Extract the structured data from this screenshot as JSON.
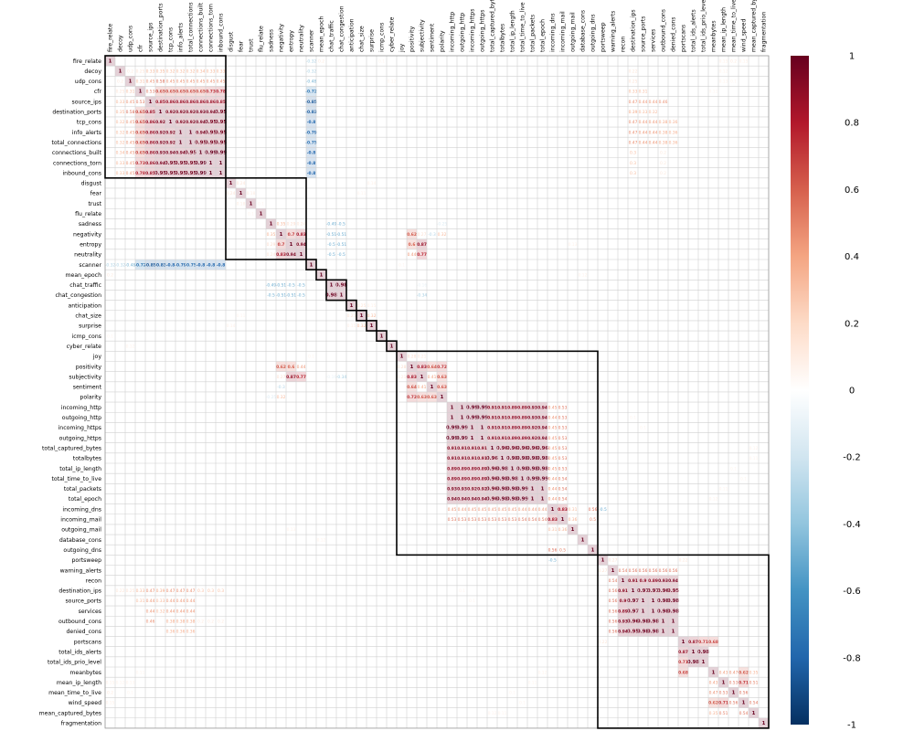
{
  "chart_data": {
    "type": "heatmap",
    "variables": [
      "fire_relate",
      "decoy",
      "udp_cons",
      "cfr",
      "source_ips",
      "destination_ports",
      "tcp_cons",
      "info_alerts",
      "total_connections",
      "connections_built",
      "connections_torn",
      "inbound_cons",
      "disgust",
      "fear",
      "trust",
      "flu_relate",
      "sadness",
      "negativity",
      "entropy",
      "neutrality",
      "scanner",
      "mean_epoch",
      "chat_traffic",
      "chat_congestion",
      "anticipation",
      "chat_size",
      "surprise",
      "icmp_cons",
      "cyber_relate",
      "joy",
      "positivity",
      "subjectivity",
      "sentiment",
      "polarity",
      "incoming_http",
      "outgoing_http",
      "incoming_https",
      "outgoing_https",
      "total_captured_bytes",
      "totalbytes",
      "total_ip_length",
      "total_time_to_live",
      "total_packets",
      "total_epoch",
      "incoming_dns",
      "incoming_mail",
      "outgoing_mail",
      "database_cons",
      "outgoing_dns",
      "portsweep",
      "warning_alerts",
      "recon",
      "destination_ips",
      "source_ports",
      "services",
      "outbound_cons",
      "denied_cons",
      "portscans",
      "total_ids_alerts",
      "total_ids_prio_level",
      "meanbytes",
      "mean_ip_length",
      "mean_time_to_live",
      "wind_speed",
      "mean_captured_bytes",
      "fragmentation"
    ],
    "clusters": [
      [
        0,
        11
      ],
      [
        12,
        19
      ],
      [
        20,
        20
      ],
      [
        21,
        21
      ],
      [
        22,
        23
      ],
      [
        24,
        24
      ],
      [
        25,
        25
      ],
      [
        26,
        26
      ],
      [
        27,
        27
      ],
      [
        28,
        28
      ],
      [
        29,
        48
      ],
      [
        49,
        65
      ]
    ],
    "colorbar": {
      "ticks": [
        "1",
        "0.8",
        "0.6",
        "0.4",
        "0.2",
        "0",
        "-0.2",
        "-0.4",
        "-0.6",
        "-0.8",
        "-1"
      ],
      "colors": [
        "#67001f",
        "#b2182b",
        "#d6604d",
        "#f4a582",
        "#fddbc7",
        "#ffffff",
        "#d1e5f0",
        "#92c5de",
        "#4393c3",
        "#2166ac",
        "#053061"
      ]
    },
    "groups": [
      {
        "members": [
          1,
          2,
          3,
          4,
          5,
          6,
          7,
          8,
          9,
          10,
          11
        ],
        "matrix": [
          [
            1,
            0.2,
            0.25,
            0.33,
            0.35,
            0.32,
            0.32,
            0.32,
            0.34,
            0.33,
            0.33
          ],
          [
            0.2,
            1,
            0.31,
            0.45,
            0.58,
            0.45,
            0.45,
            0.45,
            0.45,
            0.45,
            0.45
          ],
          [
            0.25,
            0.31,
            1,
            0.53,
            0.65,
            0.65,
            0.65,
            0.65,
            0.65,
            0.73,
            0.78
          ],
          [
            0.33,
            0.45,
            0.53,
            1,
            0.85,
            0.86,
            0.86,
            0.86,
            0.86,
            0.86,
            0.85
          ],
          [
            0.35,
            0.58,
            0.65,
            0.85,
            1,
            0.92,
            0.92,
            0.92,
            0.93,
            0.94,
            0.95
          ],
          [
            0.32,
            0.45,
            0.65,
            0.86,
            0.92,
            1,
            0.92,
            0.92,
            0.94,
            0.95,
            0.95
          ],
          [
            0.32,
            0.45,
            0.65,
            0.86,
            0.92,
            0.92,
            1,
            1,
            0.94,
            0.95,
            0.95
          ],
          [
            0.32,
            0.45,
            0.65,
            0.86,
            0.92,
            0.92,
            1,
            1,
            0.95,
            0.95,
            0.95
          ],
          [
            0.34,
            0.45,
            0.65,
            0.86,
            0.93,
            0.94,
            0.94,
            0.95,
            1,
            0.99,
            0.99
          ],
          [
            0.33,
            0.45,
            0.73,
            0.86,
            0.94,
            0.95,
            0.95,
            0.95,
            0.99,
            1,
            1
          ],
          [
            0.33,
            0.45,
            0.78,
            0.85,
            0.95,
            0.95,
            0.95,
            0.95,
            0.99,
            1,
            1
          ]
        ]
      },
      {
        "members": [
          34,
          35,
          36,
          37,
          38,
          39,
          40,
          41,
          42,
          43
        ],
        "matrix": [
          [
            1,
            1,
            0.99,
            0.99,
            0.91,
            0.91,
            0.89,
            0.89,
            0.93,
            0.94
          ],
          [
            1,
            1,
            0.99,
            0.99,
            0.91,
            0.91,
            0.89,
            0.89,
            0.93,
            0.94
          ],
          [
            0.99,
            0.99,
            1,
            1,
            0.91,
            0.91,
            0.89,
            0.89,
            0.92,
            0.94
          ],
          [
            0.99,
            0.99,
            1,
            1,
            0.91,
            0.91,
            0.89,
            0.89,
            0.92,
            0.94
          ],
          [
            0.91,
            0.91,
            0.91,
            0.91,
            1,
            0.96,
            0.96,
            0.96,
            0.96,
            0.96
          ],
          [
            0.91,
            0.91,
            0.91,
            0.91,
            0.96,
            1,
            0.98,
            0.98,
            0.98,
            0.98
          ],
          [
            0.89,
            0.89,
            0.89,
            0.89,
            0.96,
            0.98,
            1,
            0.98,
            0.98,
            0.98
          ],
          [
            0.89,
            0.89,
            0.89,
            0.89,
            0.96,
            0.98,
            0.98,
            1,
            0.99,
            0.99
          ],
          [
            0.93,
            0.93,
            0.92,
            0.92,
            0.96,
            0.98,
            0.98,
            0.99,
            1,
            1
          ],
          [
            0.94,
            0.94,
            0.94,
            0.94,
            0.96,
            0.98,
            0.98,
            0.99,
            1,
            1
          ]
        ]
      },
      {
        "members": [
          51,
          52,
          53,
          54,
          55,
          56
        ],
        "matrix": [
          [
            1,
            0.91,
            0.9,
            0.89,
            0.93,
            0.94
          ],
          [
            0.91,
            1,
            0.97,
            0.97,
            0.96,
            0.95
          ],
          [
            0.9,
            0.97,
            1,
            1,
            0.98,
            0.98
          ],
          [
            0.89,
            0.97,
            1,
            1,
            0.98,
            0.98
          ],
          [
            0.93,
            0.96,
            0.98,
            0.98,
            1,
            1
          ],
          [
            0.94,
            0.95,
            0.98,
            0.98,
            1,
            1
          ]
        ]
      }
    ],
    "pairs": [
      {
        "i": 20,
        "j": 0,
        "v": -0.32
      },
      {
        "i": 20,
        "j": 1,
        "v": -0.32
      },
      {
        "i": 20,
        "j": 2,
        "v": -0.48
      },
      {
        "i": 20,
        "j": 3,
        "v": -0.72
      },
      {
        "i": 20,
        "j": 4,
        "v": -0.85
      },
      {
        "i": 20,
        "j": 5,
        "v": -0.83
      },
      {
        "i": 20,
        "j": 6,
        "v": -0.8
      },
      {
        "i": 20,
        "j": 7,
        "v": -0.79
      },
      {
        "i": 20,
        "j": 8,
        "v": -0.75
      },
      {
        "i": 20,
        "j": 9,
        "v": -0.8
      },
      {
        "i": 20,
        "j": 10,
        "v": -0.8
      },
      {
        "i": 20,
        "j": 11,
        "v": -0.8
      },
      {
        "i": 21,
        "j": 0,
        "v": 0.2
      },
      {
        "i": 22,
        "j": 23,
        "v": 0.98
      },
      {
        "i": 22,
        "j": 16,
        "v": -0.49
      },
      {
        "i": 22,
        "j": 17,
        "v": -0.51
      },
      {
        "i": 22,
        "j": 18,
        "v": -0.5
      },
      {
        "i": 22,
        "j": 19,
        "v": -0.5
      },
      {
        "i": 23,
        "j": 16,
        "v": -0.5
      },
      {
        "i": 23,
        "j": 17,
        "v": -0.51
      },
      {
        "i": 23,
        "j": 18,
        "v": -0.51
      },
      {
        "i": 23,
        "j": 19,
        "v": -0.5
      },
      {
        "i": 16,
        "j": 17,
        "v": 0.35
      },
      {
        "i": 16,
        "j": 18,
        "v": 0.29
      },
      {
        "i": 16,
        "j": 19,
        "v": 0.24
      },
      {
        "i": 17,
        "j": 18,
        "v": 0.7
      },
      {
        "i": 17,
        "j": 19,
        "v": 0.83
      },
      {
        "i": 18,
        "j": 19,
        "v": 0.94
      },
      {
        "i": 12,
        "j": 13,
        "v": 0.24
      },
      {
        "i": 14,
        "j": 13,
        "v": 0.18
      },
      {
        "i": 15,
        "j": 14,
        "v": 0.1
      },
      {
        "i": 24,
        "j": 25,
        "v": 0.25
      },
      {
        "i": 25,
        "j": 26,
        "v": 0.32
      },
      {
        "i": 24,
        "j": 26,
        "v": 0.15
      },
      {
        "i": 29,
        "j": 30,
        "v": 0.28
      },
      {
        "i": 29,
        "j": 31,
        "v": 0.21
      },
      {
        "i": 30,
        "j": 31,
        "v": 0.83
      },
      {
        "i": 30,
        "j": 32,
        "v": 0.64
      },
      {
        "i": 30,
        "j": 33,
        "v": 0.72
      },
      {
        "i": 31,
        "j": 32,
        "v": 0.41
      },
      {
        "i": 31,
        "j": 33,
        "v": 0.63
      },
      {
        "i": 32,
        "j": 33,
        "v": 0.63
      },
      {
        "i": 17,
        "j": 30,
        "v": 0.62
      },
      {
        "i": 17,
        "j": 31,
        "v": 0.27
      },
      {
        "i": 17,
        "j": 32,
        "v": -0.3
      },
      {
        "i": 18,
        "j": 30,
        "v": 0.6
      },
      {
        "i": 18,
        "j": 31,
        "v": 0.87
      },
      {
        "i": 19,
        "j": 30,
        "v": 0.44
      },
      {
        "i": 19,
        "j": 31,
        "v": 0.77
      },
      {
        "i": 33,
        "j": 16,
        "v": -0.25
      },
      {
        "i": 33,
        "j": 17,
        "v": 0.32
      },
      {
        "i": 31,
        "j": 23,
        "v": -0.34
      },
      {
        "i": 31,
        "j": 22,
        "v": -0.16
      },
      {
        "i": 44,
        "j": 34,
        "v": 0.45
      },
      {
        "i": 44,
        "j": 35,
        "v": 0.44
      },
      {
        "i": 44,
        "j": 36,
        "v": 0.45
      },
      {
        "i": 44,
        "j": 37,
        "v": 0.45
      },
      {
        "i": 44,
        "j": 38,
        "v": 0.45
      },
      {
        "i": 44,
        "j": 39,
        "v": 0.45
      },
      {
        "i": 44,
        "j": 40,
        "v": 0.45
      },
      {
        "i": 44,
        "j": 41,
        "v": 0.44
      },
      {
        "i": 44,
        "j": 42,
        "v": 0.44
      },
      {
        "i": 44,
        "j": 43,
        "v": 0.44
      },
      {
        "i": 44,
        "j": 45,
        "v": 0.83
      },
      {
        "i": 45,
        "j": 34,
        "v": 0.53
      },
      {
        "i": 45,
        "j": 35,
        "v": 0.53
      },
      {
        "i": 45,
        "j": 36,
        "v": 0.53
      },
      {
        "i": 45,
        "j": 37,
        "v": 0.53
      },
      {
        "i": 45,
        "j": 38,
        "v": 0.53
      },
      {
        "i": 45,
        "j": 39,
        "v": 0.53
      },
      {
        "i": 45,
        "j": 40,
        "v": 0.53
      },
      {
        "i": 45,
        "j": 41,
        "v": 0.54
      },
      {
        "i": 45,
        "j": 42,
        "v": 0.54
      },
      {
        "i": 45,
        "j": 43,
        "v": 0.54
      },
      {
        "i": 46,
        "j": 44,
        "v": 0.31
      },
      {
        "i": 46,
        "j": 45,
        "v": 0.36
      },
      {
        "i": 48,
        "j": 44,
        "v": 0.56
      },
      {
        "i": 48,
        "j": 45,
        "v": 0.5
      },
      {
        "i": 44,
        "j": 49,
        "v": -0.5
      },
      {
        "i": 50,
        "j": 51,
        "v": 0.54
      },
      {
        "i": 50,
        "j": 52,
        "v": 0.56
      },
      {
        "i": 50,
        "j": 53,
        "v": 0.56
      },
      {
        "i": 50,
        "j": 54,
        "v": 0.56
      },
      {
        "i": 50,
        "j": 55,
        "v": 0.56
      },
      {
        "i": 50,
        "j": 56,
        "v": 0.56
      },
      {
        "i": 49,
        "j": 57,
        "v": 0.22
      },
      {
        "i": 49,
        "j": 50,
        "v": 0.27
      },
      {
        "i": 57,
        "j": 58,
        "v": 0.87
      },
      {
        "i": 57,
        "j": 59,
        "v": 0.71
      },
      {
        "i": 57,
        "j": 60,
        "v": 0.68
      },
      {
        "i": 58,
        "j": 59,
        "v": 0.98
      },
      {
        "i": 60,
        "j": 61,
        "v": 0.43
      },
      {
        "i": 60,
        "j": 62,
        "v": 0.47
      },
      {
        "i": 60,
        "j": 63,
        "v": 0.62
      },
      {
        "i": 61,
        "j": 62,
        "v": 0.53
      },
      {
        "i": 61,
        "j": 63,
        "v": 0.71
      },
      {
        "i": 62,
        "j": 63,
        "v": 0.56
      },
      {
        "i": 63,
        "j": 64,
        "v": 0.54
      },
      {
        "i": 61,
        "j": 64,
        "v": 0.51
      },
      {
        "i": 60,
        "j": 64,
        "v": 0.35
      },
      {
        "i": 4,
        "j": 52,
        "v": 0.47
      },
      {
        "i": 4,
        "j": 53,
        "v": 0.44
      },
      {
        "i": 4,
        "j": 54,
        "v": 0.44
      },
      {
        "i": 4,
        "j": 55,
        "v": 0.46
      },
      {
        "i": 5,
        "j": 52,
        "v": 0.39
      },
      {
        "i": 5,
        "j": 53,
        "v": 0.33
      },
      {
        "i": 5,
        "j": 54,
        "v": 0.32
      },
      {
        "i": 6,
        "j": 52,
        "v": 0.47
      },
      {
        "i": 6,
        "j": 53,
        "v": 0.44
      },
      {
        "i": 6,
        "j": 54,
        "v": 0.44
      },
      {
        "i": 6,
        "j": 55,
        "v": 0.38
      },
      {
        "i": 6,
        "j": 56,
        "v": 0.36
      },
      {
        "i": 7,
        "j": 52,
        "v": 0.47
      },
      {
        "i": 7,
        "j": 53,
        "v": 0.44
      },
      {
        "i": 7,
        "j": 54,
        "v": 0.44
      },
      {
        "i": 7,
        "j": 55,
        "v": 0.38
      },
      {
        "i": 7,
        "j": 56,
        "v": 0.36
      },
      {
        "i": 8,
        "j": 52,
        "v": 0.47
      },
      {
        "i": 8,
        "j": 53,
        "v": 0.44
      },
      {
        "i": 8,
        "j": 54,
        "v": 0.44
      },
      {
        "i": 8,
        "j": 55,
        "v": 0.38
      },
      {
        "i": 8,
        "j": 56,
        "v": 0.36
      },
      {
        "i": 9,
        "j": 52,
        "v": 0.3
      },
      {
        "i": 10,
        "j": 52,
        "v": 0.3
      },
      {
        "i": 11,
        "j": 52,
        "v": 0.3
      },
      {
        "i": 3,
        "j": 52,
        "v": 0.33
      },
      {
        "i": 3,
        "j": 53,
        "v": 0.31
      },
      {
        "i": 2,
        "j": 52,
        "v": 0.25
      },
      {
        "i": 1,
        "j": 52,
        "v": 0.22
      },
      {
        "i": 9,
        "j": 55,
        "v": 0.2
      },
      {
        "i": 10,
        "j": 55,
        "v": 0.2
      },
      {
        "i": 11,
        "j": 55,
        "v": 0.2
      },
      {
        "i": 0,
        "j": 61,
        "v": 0.15
      },
      {
        "i": 0,
        "j": 62,
        "v": 0.2
      },
      {
        "i": 0,
        "j": 63,
        "v": 0.15
      },
      {
        "i": 1,
        "j": 61,
        "v": 0.12
      },
      {
        "i": 2,
        "j": 61,
        "v": 0.13
      },
      {
        "i": 2,
        "j": 62,
        "v": 0.1
      },
      {
        "i": 3,
        "j": 60,
        "v": 0.11
      },
      {
        "i": 18,
        "j": 46,
        "v": 0.13
      },
      {
        "i": 20,
        "j": 29,
        "v": 0.1
      },
      {
        "i": 21,
        "j": 47,
        "v": 0.12
      },
      {
        "i": 26,
        "j": 12,
        "v": 0.14
      },
      {
        "i": 25,
        "j": 13,
        "v": 0.11
      },
      {
        "i": 27,
        "j": 0,
        "v": 0.1
      },
      {
        "i": 28,
        "j": 2,
        "v": 0.12
      },
      {
        "i": 38,
        "j": 64,
        "v": 0.12
      },
      {
        "i": 39,
        "j": 64,
        "v": 0.11
      },
      {
        "i": 40,
        "j": 62,
        "v": 0.1
      },
      {
        "i": 41,
        "j": 63,
        "v": 0.1
      },
      {
        "i": 42,
        "j": 61,
        "v": 0.11
      },
      {
        "i": 43,
        "j": 60,
        "v": 0.12
      },
      {
        "i": 35,
        "j": 52,
        "v": 0.1
      },
      {
        "i": 36,
        "j": 53,
        "v": 0.1
      }
    ]
  }
}
